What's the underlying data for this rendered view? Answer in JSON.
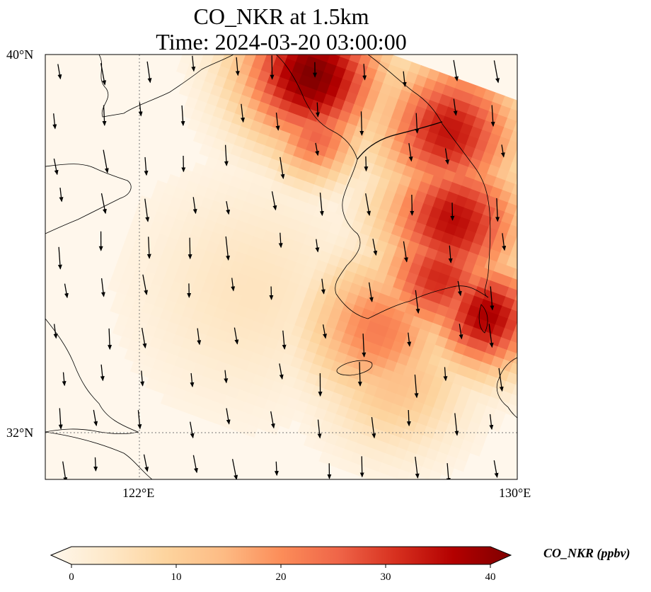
{
  "title": {
    "line1": "CO_NKR at 1.5km",
    "line2": "Time: 2024-03-20 03:00:00"
  },
  "axes": {
    "x_ticks": [
      "122°E",
      "130°E"
    ],
    "y_ticks": [
      "40°N",
      "32°N"
    ],
    "gridlines": "dotted"
  },
  "colorbar": {
    "label": "CO_NKR (ppbv)",
    "ticks": [
      "0",
      "10",
      "20",
      "30",
      "40"
    ],
    "colormap": "OrRd",
    "extend": "max",
    "colors": [
      "#fff7ec",
      "#fee8c8",
      "#fdd49e",
      "#fdbb84",
      "#fc8d59",
      "#ef6548",
      "#d7301f",
      "#b30000",
      "#7f0000"
    ]
  },
  "chart_data": {
    "type": "heatmap",
    "variable": "CO_NKR",
    "units": "ppbv",
    "lon_range": [
      120,
      130
    ],
    "lat_range": [
      31,
      40
    ],
    "value_range": [
      0,
      40
    ],
    "plumes": [
      {
        "lon": 125.7,
        "lat": 39.6,
        "value": 40
      },
      {
        "lon": 128.6,
        "lat": 38.4,
        "value": 33
      },
      {
        "lon": 128.7,
        "lat": 36.5,
        "value": 34
      },
      {
        "lon": 128.4,
        "lat": 35.3,
        "value": 31
      },
      {
        "lon": 129.4,
        "lat": 34.5,
        "value": 36
      },
      {
        "lon": 125.8,
        "lat": 38.3,
        "value": 25
      },
      {
        "lon": 127.1,
        "lat": 34.2,
        "value": 22
      },
      {
        "lon": 127.5,
        "lat": 33.2,
        "value": 14
      },
      {
        "lon": 124.4,
        "lat": 35.0,
        "value": 6
      }
    ],
    "wind": "NNW flow, arrows pointing toward SSE"
  }
}
